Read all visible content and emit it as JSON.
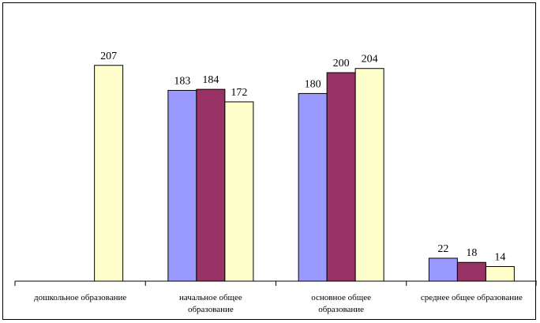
{
  "chart_data": {
    "type": "bar",
    "categories": [
      [
        "дошкольное образование"
      ],
      [
        "начальное общее",
        "образование"
      ],
      [
        "основное общее",
        "образование"
      ],
      [
        "среднее общее образование"
      ]
    ],
    "series": [
      {
        "color": "#9999ff",
        "values": [
          null,
          183,
          180,
          22
        ]
      },
      {
        "color": "#993366",
        "values": [
          null,
          184,
          200,
          18
        ]
      },
      {
        "color": "#ffffcc",
        "values": [
          207,
          172,
          204,
          14
        ]
      }
    ],
    "ylim": [
      0,
      250
    ],
    "grid": false,
    "legend": "none"
  }
}
